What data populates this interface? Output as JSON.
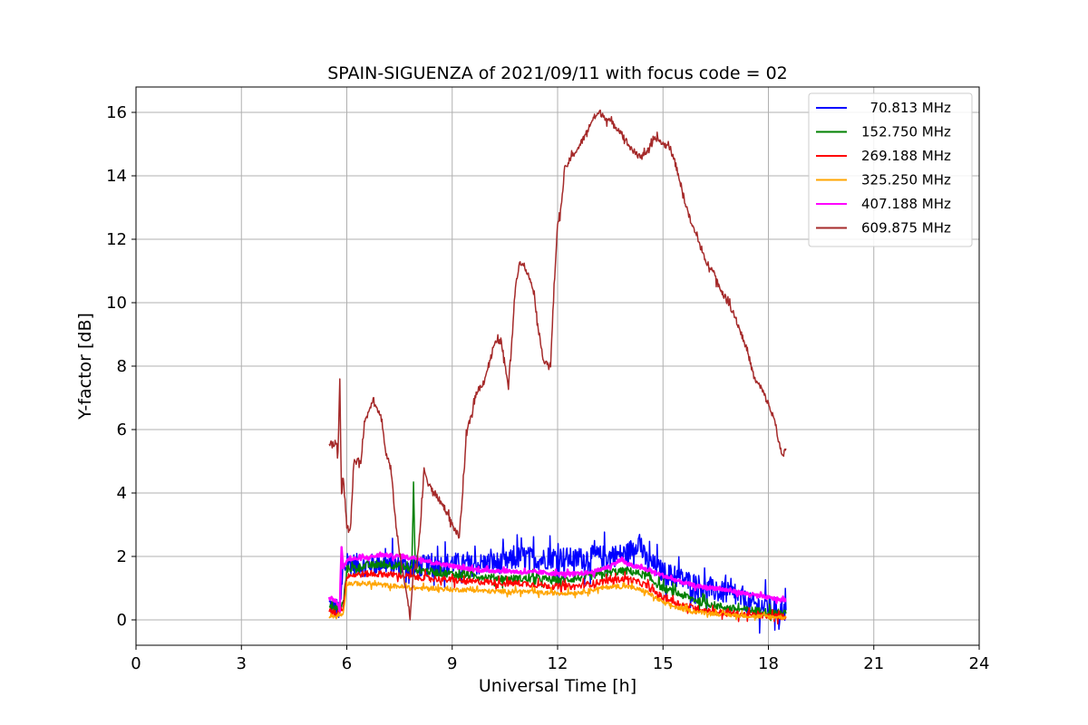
{
  "chart_data": {
    "type": "line",
    "title": "SPAIN-SIGUENZA of 2021/09/11 with focus code = 02",
    "xlabel": "Universal Time [h]",
    "ylabel": "Y-factor [dB]",
    "xlim": [
      0,
      24
    ],
    "ylim": [
      -0.8,
      16.8
    ],
    "xticks": [
      0,
      3,
      6,
      9,
      12,
      15,
      18,
      21,
      24
    ],
    "yticks": [
      0,
      2,
      4,
      6,
      8,
      10,
      12,
      14,
      16
    ],
    "grid": true,
    "legend_position": "top-right",
    "series": [
      {
        "name": "  70.813 MHz",
        "color": "#0000ff",
        "noise": 0.35,
        "x": [
          5.5,
          5.6,
          5.8,
          5.9,
          6.0,
          6.5,
          7.0,
          7.5,
          8.0,
          8.5,
          9.0,
          9.5,
          10.0,
          10.5,
          11.0,
          11.5,
          12.0,
          12.5,
          13.0,
          13.5,
          14.0,
          14.3,
          14.5,
          15.0,
          15.5,
          16.0,
          16.5,
          17.0,
          17.5,
          18.0,
          18.5
        ],
        "y": [
          0.5,
          0.4,
          0.3,
          1.5,
          1.8,
          1.7,
          1.8,
          1.7,
          1.7,
          1.7,
          1.8,
          1.7,
          1.8,
          1.8,
          2.0,
          1.9,
          2.0,
          1.9,
          2.0,
          2.0,
          2.1,
          2.5,
          1.9,
          1.5,
          1.3,
          1.1,
          0.9,
          0.8,
          0.5,
          0.4,
          0.3
        ]
      },
      {
        "name": "152.750 MHz",
        "color": "#008000",
        "noise": 0.12,
        "x": [
          5.5,
          5.7,
          5.9,
          6.0,
          6.5,
          7.0,
          7.5,
          7.85,
          7.9,
          7.95,
          8.5,
          9.0,
          9.5,
          10.0,
          10.5,
          11.0,
          11.5,
          12.0,
          12.5,
          13.0,
          13.5,
          14.0,
          14.5,
          15.0,
          15.5,
          16.0,
          16.5,
          17.0,
          17.5,
          18.0,
          18.5
        ],
        "y": [
          0.4,
          0.3,
          0.5,
          1.6,
          1.7,
          1.75,
          1.7,
          1.6,
          4.25,
          1.6,
          1.5,
          1.45,
          1.4,
          1.35,
          1.3,
          1.3,
          1.3,
          1.25,
          1.3,
          1.4,
          1.5,
          1.55,
          1.4,
          1.0,
          0.8,
          0.6,
          0.45,
          0.35,
          0.3,
          0.25,
          0.2
        ]
      },
      {
        "name": "269.188 MHz",
        "color": "#ff0000",
        "noise": 0.1,
        "x": [
          5.5,
          5.7,
          5.9,
          6.0,
          6.5,
          7.0,
          7.5,
          8.0,
          8.5,
          9.0,
          9.5,
          10.0,
          10.5,
          11.0,
          11.5,
          12.0,
          12.5,
          13.0,
          13.5,
          14.0,
          14.5,
          15.0,
          15.5,
          16.0,
          16.5,
          17.0,
          17.5,
          18.0,
          18.5
        ],
        "y": [
          0.3,
          0.2,
          0.4,
          1.4,
          1.45,
          1.45,
          1.4,
          1.35,
          1.3,
          1.25,
          1.2,
          1.2,
          1.15,
          1.15,
          1.1,
          1.05,
          1.05,
          1.15,
          1.25,
          1.3,
          1.1,
          0.7,
          0.5,
          0.35,
          0.25,
          0.2,
          0.15,
          0.12,
          0.1
        ]
      },
      {
        "name": "325.250 MHz",
        "color": "#ffa500",
        "noise": 0.07,
        "x": [
          5.5,
          5.7,
          5.9,
          6.0,
          6.5,
          7.0,
          7.5,
          8.0,
          8.5,
          9.0,
          9.5,
          10.0,
          10.5,
          11.0,
          11.5,
          12.0,
          12.5,
          13.0,
          13.5,
          14.0,
          14.5,
          15.0,
          15.5,
          16.0,
          16.5,
          17.0,
          17.5,
          18.0,
          18.5
        ],
        "y": [
          0.15,
          0.1,
          0.2,
          1.15,
          1.15,
          1.1,
          1.05,
          1.0,
          1.0,
          0.95,
          0.95,
          0.9,
          0.9,
          0.9,
          0.85,
          0.85,
          0.85,
          0.95,
          1.05,
          1.05,
          0.9,
          0.55,
          0.35,
          0.25,
          0.2,
          0.15,
          0.12,
          0.1,
          0.08
        ]
      },
      {
        "name": "407.188 MHz",
        "color": "#ff00ff",
        "noise": 0.06,
        "x": [
          5.5,
          5.7,
          5.8,
          5.85,
          5.9,
          6.0,
          6.5,
          7.0,
          7.5,
          8.0,
          8.5,
          9.0,
          9.5,
          10.0,
          10.5,
          11.0,
          11.5,
          12.0,
          12.5,
          13.0,
          13.5,
          13.8,
          14.0,
          14.5,
          15.0,
          15.5,
          16.0,
          16.5,
          17.0,
          17.5,
          18.0,
          18.5
        ],
        "y": [
          0.7,
          0.6,
          0.3,
          2.4,
          1.6,
          1.9,
          1.95,
          2.05,
          2.0,
          1.95,
          1.8,
          1.7,
          1.6,
          1.55,
          1.55,
          1.5,
          1.5,
          1.45,
          1.45,
          1.5,
          1.7,
          1.9,
          1.75,
          1.6,
          1.4,
          1.2,
          1.05,
          1.0,
          0.9,
          0.8,
          0.7,
          0.6
        ]
      },
      {
        "name": "609.875 MHz",
        "color": "#a52a2a",
        "noise": 0.1,
        "x": [
          5.5,
          5.6,
          5.7,
          5.75,
          5.8,
          5.85,
          5.9,
          6.0,
          6.1,
          6.2,
          6.4,
          6.5,
          6.6,
          6.75,
          7.0,
          7.1,
          7.25,
          7.4,
          7.5,
          7.65,
          7.8,
          7.9,
          8.0,
          8.1,
          8.2,
          8.3,
          8.5,
          8.8,
          9.0,
          9.2,
          9.35,
          9.4,
          9.55,
          9.7,
          9.9,
          10.1,
          10.2,
          10.4,
          10.6,
          10.8,
          10.9,
          11.0,
          11.3,
          11.5,
          11.6,
          11.8,
          11.9,
          12.0,
          12.1,
          12.2,
          12.4,
          12.6,
          12.8,
          13.0,
          13.2,
          13.5,
          13.8,
          14.0,
          14.3,
          14.6,
          14.8,
          15.0,
          15.2,
          15.4,
          15.6,
          15.8,
          16.0,
          16.2,
          16.4,
          16.6,
          16.8,
          17.0,
          17.2,
          17.4,
          17.6,
          17.8,
          18.0,
          18.2,
          18.3,
          18.4,
          18.5
        ],
        "y": [
          5.6,
          5.5,
          5.6,
          5.2,
          7.6,
          4.0,
          4.5,
          3.0,
          2.7,
          5.0,
          5.0,
          6.2,
          6.5,
          7.0,
          6.3,
          5.3,
          4.8,
          3.0,
          2.1,
          1.2,
          0.1,
          1.5,
          1.8,
          3.0,
          4.8,
          4.3,
          4.0,
          3.5,
          3.0,
          2.6,
          4.8,
          5.8,
          6.5,
          7.2,
          7.5,
          8.3,
          8.7,
          8.8,
          7.3,
          10.5,
          11.2,
          11.3,
          10.5,
          8.8,
          8.2,
          8.0,
          10.5,
          12.5,
          13.0,
          14.2,
          14.6,
          14.9,
          15.3,
          15.8,
          16.0,
          15.7,
          15.4,
          15.0,
          14.6,
          14.8,
          15.2,
          15.0,
          14.9,
          14.2,
          13.3,
          12.5,
          12.0,
          11.3,
          11.1,
          10.5,
          10.1,
          9.7,
          9.1,
          8.5,
          7.6,
          7.3,
          6.8,
          6.2,
          5.6,
          5.1,
          5.4
        ]
      }
    ]
  }
}
